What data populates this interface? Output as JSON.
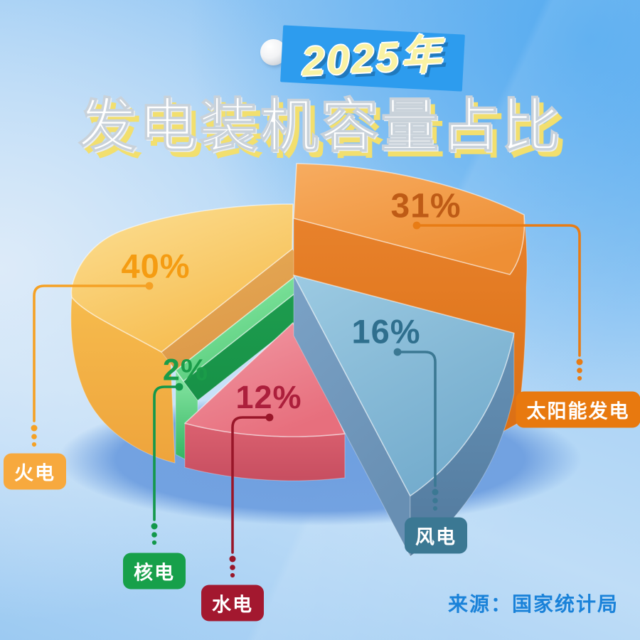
{
  "title": {
    "badge_year": "2025年",
    "main": "发电装机容量占比"
  },
  "source": {
    "label": "来源：国家统计局"
  },
  "background": {
    "sky_accent": "#55ABF0",
    "sky_pale": "#DDEBF9",
    "ground_shadow": "#6C9DDF",
    "year_badge_bg": "#2D9CEE",
    "year_text": "#F9F2A3",
    "title_shadow": "#F2DF6E"
  },
  "chart_data": {
    "type": "pie",
    "title": "2025年发电装机容量占比",
    "unit": "%",
    "style": "3d-exploded",
    "legend_position": "callout-badges",
    "source": "来源：国家统计局",
    "slices": [
      {
        "id": "thermal",
        "label": "火电",
        "value": 40,
        "pct": "40%",
        "value_color": "#F59C12",
        "badge_color": "#F7A93E",
        "line_color": "#F5A125",
        "faces": {
          "top": [
            "#FCE095",
            "#F6BC4F"
          ],
          "side": [
            "#F6BB4D",
            "#EEA43C"
          ],
          "cut": [
            "#E7AB56",
            "#DC9848"
          ]
        }
      },
      {
        "id": "solar",
        "label": "太阳能发电",
        "value": 31,
        "pct": "31%",
        "value_color": "#BE5B16",
        "badge_color": "#E8790F",
        "line_color": "#E87C15",
        "faces": {
          "top": [
            "#F7AC60",
            "#EE8F35"
          ],
          "side": [
            "#E8822C",
            "#DB6F14"
          ]
        }
      },
      {
        "id": "wind",
        "label": "风电",
        "value": 16,
        "pct": "16%",
        "value_color": "#2F6F8E",
        "badge_color": "#3B7893",
        "line_color": "#3B7893",
        "faces": {
          "top": [
            "#9CCAE2",
            "#74ACCD"
          ],
          "side": [
            "#6792B6",
            "#51799D"
          ],
          "cut": [
            "#7BA2C6",
            "#688FB3"
          ]
        }
      },
      {
        "id": "hydro",
        "label": "水电",
        "value": 12,
        "pct": "12%",
        "value_color": "#AC1F3C",
        "badge_color": "#A3182F",
        "line_color": "#991629",
        "faces": {
          "top": [
            "#F29AA5",
            "#E76F7D"
          ],
          "side": [
            "#DB6170",
            "#C74E60"
          ]
        }
      },
      {
        "id": "nuclear",
        "label": "核电",
        "value": 2,
        "pct": "2%",
        "value_color": "#1A9C49",
        "badge_color": "#17A04A",
        "line_color": "#13984B",
        "faces": {
          "top": [
            "#96F2B0",
            "#52C877"
          ],
          "cap": [
            "#8BE8A6",
            "#2FB25F"
          ],
          "side": [
            "#1E9E4F",
            "#179147"
          ]
        }
      }
    ]
  }
}
